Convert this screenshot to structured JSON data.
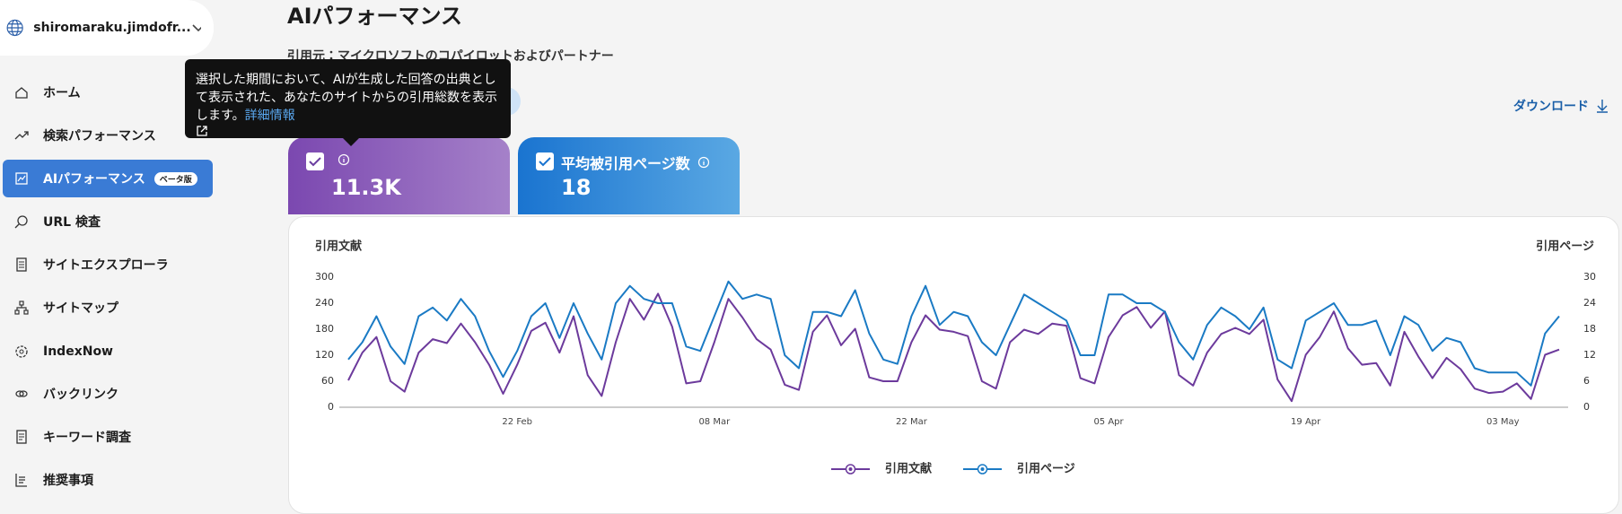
{
  "sidebar": {
    "account": "shiromaraku.jimdofr...",
    "nav": [
      "ホーム",
      "検索パフォーマンス",
      "AIパフォーマンス",
      "URL 検査",
      "サイトエクスプローラ",
      "サイトマップ",
      "IndexNow",
      "バックリンク",
      "キーワード調査",
      "推奨事項"
    ],
    "badge": "ベータ版"
  },
  "header": {
    "title": "AIパフォーマンス",
    "subtitle": "引用元：マイクロソフトのコパイロットおよびパートナー",
    "download": "ダウンロード"
  },
  "tooltip": {
    "text": "選択した期間において、AIが生成した回答の出典として表示された、あなたのサイトからの引用総数を表示します。",
    "link": "詳細情報"
  },
  "cards": [
    {
      "value": "11.3K"
    },
    {
      "label": "平均被引用ページ数",
      "value": 18
    }
  ],
  "chart_data": {
    "type": "line",
    "y_label": "引用文献",
    "y2_label": "引用ページ",
    "categories": [
      null,
      null,
      null,
      null,
      null,
      null,
      null,
      null,
      null,
      null,
      null,
      null,
      "22 Feb",
      null,
      null,
      null,
      null,
      null,
      null,
      null,
      null,
      null,
      null,
      null,
      null,
      null,
      "08 Mar",
      null,
      null,
      null,
      null,
      null,
      null,
      null,
      null,
      null,
      null,
      null,
      null,
      null,
      "22 Mar",
      null,
      null,
      null,
      null,
      null,
      null,
      null,
      null,
      null,
      null,
      null,
      null,
      null,
      "05 Apr",
      null,
      null,
      null,
      null,
      null,
      null,
      null,
      null,
      null,
      null,
      null,
      null,
      null,
      "19 Apr",
      null,
      null,
      null,
      null,
      null,
      null,
      null,
      null,
      null,
      null,
      null,
      null,
      null,
      "03 May",
      null,
      null,
      null,
      null
    ],
    "series": [
      {
        "name": "引用文献",
        "color": "#6c3a9c",
        "axis": "y",
        "values": [
          62,
          126,
          162,
          60,
          36,
          126,
          157,
          148,
          193,
          150,
          98,
          31,
          98,
          176,
          195,
          126,
          210,
          74,
          26,
          150,
          250,
          202,
          262,
          186,
          55,
          60,
          150,
          250,
          207,
          157,
          133,
          52,
          40,
          174,
          212,
          143,
          181,
          69,
          60,
          60,
          150,
          212,
          179,
          174,
          164,
          60,
          43,
          150,
          179,
          169,
          193,
          188,
          67,
          55,
          162,
          212,
          231,
          183,
          221,
          74,
          50,
          126,
          169,
          183,
          169,
          202,
          64,
          14,
          121,
          162,
          221,
          136,
          98,
          102,
          50,
          174,
          117,
          67,
          114,
          88,
          43,
          33,
          36,
          55,
          19,
          121,
          133
        ]
      },
      {
        "name": "引用ページ",
        "color": "#1a7ac4",
        "axis": "y2",
        "values": [
          11,
          15,
          21,
          14,
          10,
          21,
          23,
          20,
          25,
          21,
          13,
          7,
          13,
          21,
          24,
          16,
          24,
          17,
          11,
          24,
          28,
          25,
          24,
          24,
          14,
          13,
          21,
          29,
          25,
          26,
          25,
          12,
          9,
          22,
          22,
          21,
          27,
          17,
          11,
          10,
          21,
          28,
          19,
          22,
          21,
          15,
          12,
          19,
          26,
          24,
          22,
          20,
          12,
          12,
          26,
          26,
          24,
          24,
          22,
          15,
          11,
          19,
          23,
          21,
          18,
          23,
          11,
          9,
          20,
          22,
          24,
          19,
          19,
          20,
          12,
          21,
          19,
          13,
          16,
          15,
          9,
          8,
          8,
          8,
          5,
          17,
          21
        ]
      }
    ],
    "ylim": [
      0,
      300
    ],
    "yticks": [
      0,
      60,
      120,
      180,
      240,
      300
    ],
    "y2lim": [
      0,
      30
    ],
    "y2ticks": [
      0,
      6,
      12,
      18,
      24,
      30
    ],
    "grid": false
  }
}
